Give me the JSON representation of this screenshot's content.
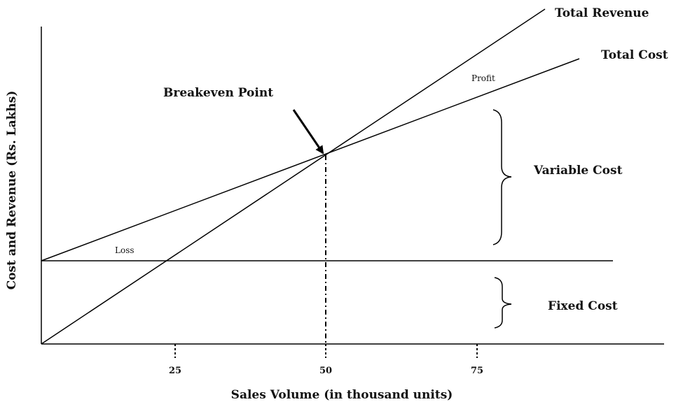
{
  "diagram": {
    "x_axis_label": "Sales Volume (in thousand units)",
    "y_axis_label": "Cost and Revenue (Rs. Lakhs)",
    "breakeven_label": "Breakeven Point",
    "lines": {
      "total_revenue": "Total Revenue",
      "total_cost": "Total Cost",
      "fixed_cost_line": ""
    },
    "regions": {
      "profit": "Profit",
      "loss": "Loss",
      "variable_cost": "Variable Cost",
      "fixed_cost": "Fixed Cost"
    }
  },
  "chart_data": {
    "type": "line",
    "xlabel": "Sales Volume (in thousand units)",
    "ylabel": "Cost and Revenue (Rs. Lakhs)",
    "x_ticks": [
      "25",
      "50",
      "75"
    ],
    "breakeven_x": 50,
    "series": [
      {
        "name": "Total Revenue",
        "x": [
          0,
          50,
          87
        ],
        "relative_y": [
          0,
          2.3,
          4.0
        ]
      },
      {
        "name": "Total Cost",
        "x": [
          0,
          50,
          94
        ],
        "relative_y": [
          1.0,
          2.3,
          3.5
        ]
      }
    ]
  }
}
